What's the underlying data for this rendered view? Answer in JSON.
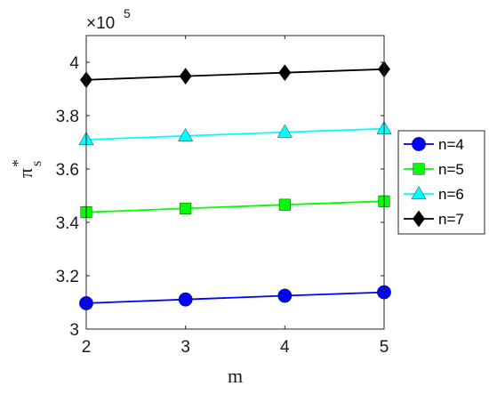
{
  "chart_data": {
    "type": "line",
    "title": "",
    "xlabel": "m",
    "ylabel_symbol": "π",
    "ylabel_sub": "s",
    "ylabel_sup": "*",
    "exponent_label": "×10",
    "exponent_power": "5",
    "x": [
      2,
      3,
      4,
      5
    ],
    "xlim": [
      2,
      5
    ],
    "ylim": [
      3.0,
      4.1
    ],
    "x_ticks": [
      "2",
      "3",
      "4",
      "5"
    ],
    "y_ticks": [
      "3",
      "3.2",
      "3.4",
      "3.6",
      "3.8",
      "4"
    ],
    "grid": false,
    "legend_position": "right",
    "series": [
      {
        "name": "n=4",
        "marker": "circle",
        "color": "#0000ff",
        "values": [
          3.097,
          3.111,
          3.125,
          3.138
        ]
      },
      {
        "name": "n=5",
        "marker": "square",
        "color": "#00ff00",
        "values": [
          3.438,
          3.452,
          3.466,
          3.479
        ]
      },
      {
        "name": "n=6",
        "marker": "triangle",
        "color": "#00ffff",
        "values": [
          3.71,
          3.724,
          3.738,
          3.751
        ]
      },
      {
        "name": "n=7",
        "marker": "diamond",
        "color": "#000000",
        "values": [
          3.934,
          3.948,
          3.961,
          3.974
        ]
      }
    ]
  }
}
